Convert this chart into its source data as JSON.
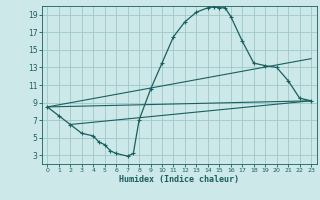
{
  "xlabel": "Humidex (Indice chaleur)",
  "xlim": [
    -0.5,
    23.5
  ],
  "ylim": [
    2,
    20
  ],
  "xticks": [
    0,
    1,
    2,
    3,
    4,
    5,
    6,
    7,
    8,
    9,
    10,
    11,
    12,
    13,
    14,
    15,
    16,
    17,
    18,
    19,
    20,
    21,
    22,
    23
  ],
  "yticks": [
    3,
    5,
    7,
    9,
    11,
    13,
    15,
    17,
    19
  ],
  "bg_color": "#cce8e8",
  "grid_color": "#9ec8c8",
  "line_color": "#1a5f5f",
  "curve1_x": [
    0,
    1,
    2,
    3,
    4,
    4.5,
    5,
    5.5,
    6,
    7,
    7.5,
    8,
    9,
    10,
    11,
    12,
    13,
    14,
    14.5,
    15,
    15.5,
    16,
    17,
    18,
    19,
    20,
    21,
    22,
    23
  ],
  "curve1_y": [
    8.5,
    7.5,
    6.5,
    5.5,
    5.2,
    4.5,
    4.2,
    3.5,
    3.2,
    2.9,
    3.2,
    7.0,
    10.5,
    13.5,
    16.5,
    18.2,
    19.3,
    19.8,
    19.9,
    19.8,
    19.8,
    18.8,
    16.0,
    13.5,
    13.2,
    13.0,
    11.5,
    9.5,
    9.2
  ],
  "line1_x": [
    0,
    23
  ],
  "line1_y": [
    8.5,
    9.2
  ],
  "line2_x": [
    0,
    23
  ],
  "line2_y": [
    8.5,
    14.0
  ],
  "line3_x": [
    2,
    23
  ],
  "line3_y": [
    6.5,
    9.2
  ]
}
